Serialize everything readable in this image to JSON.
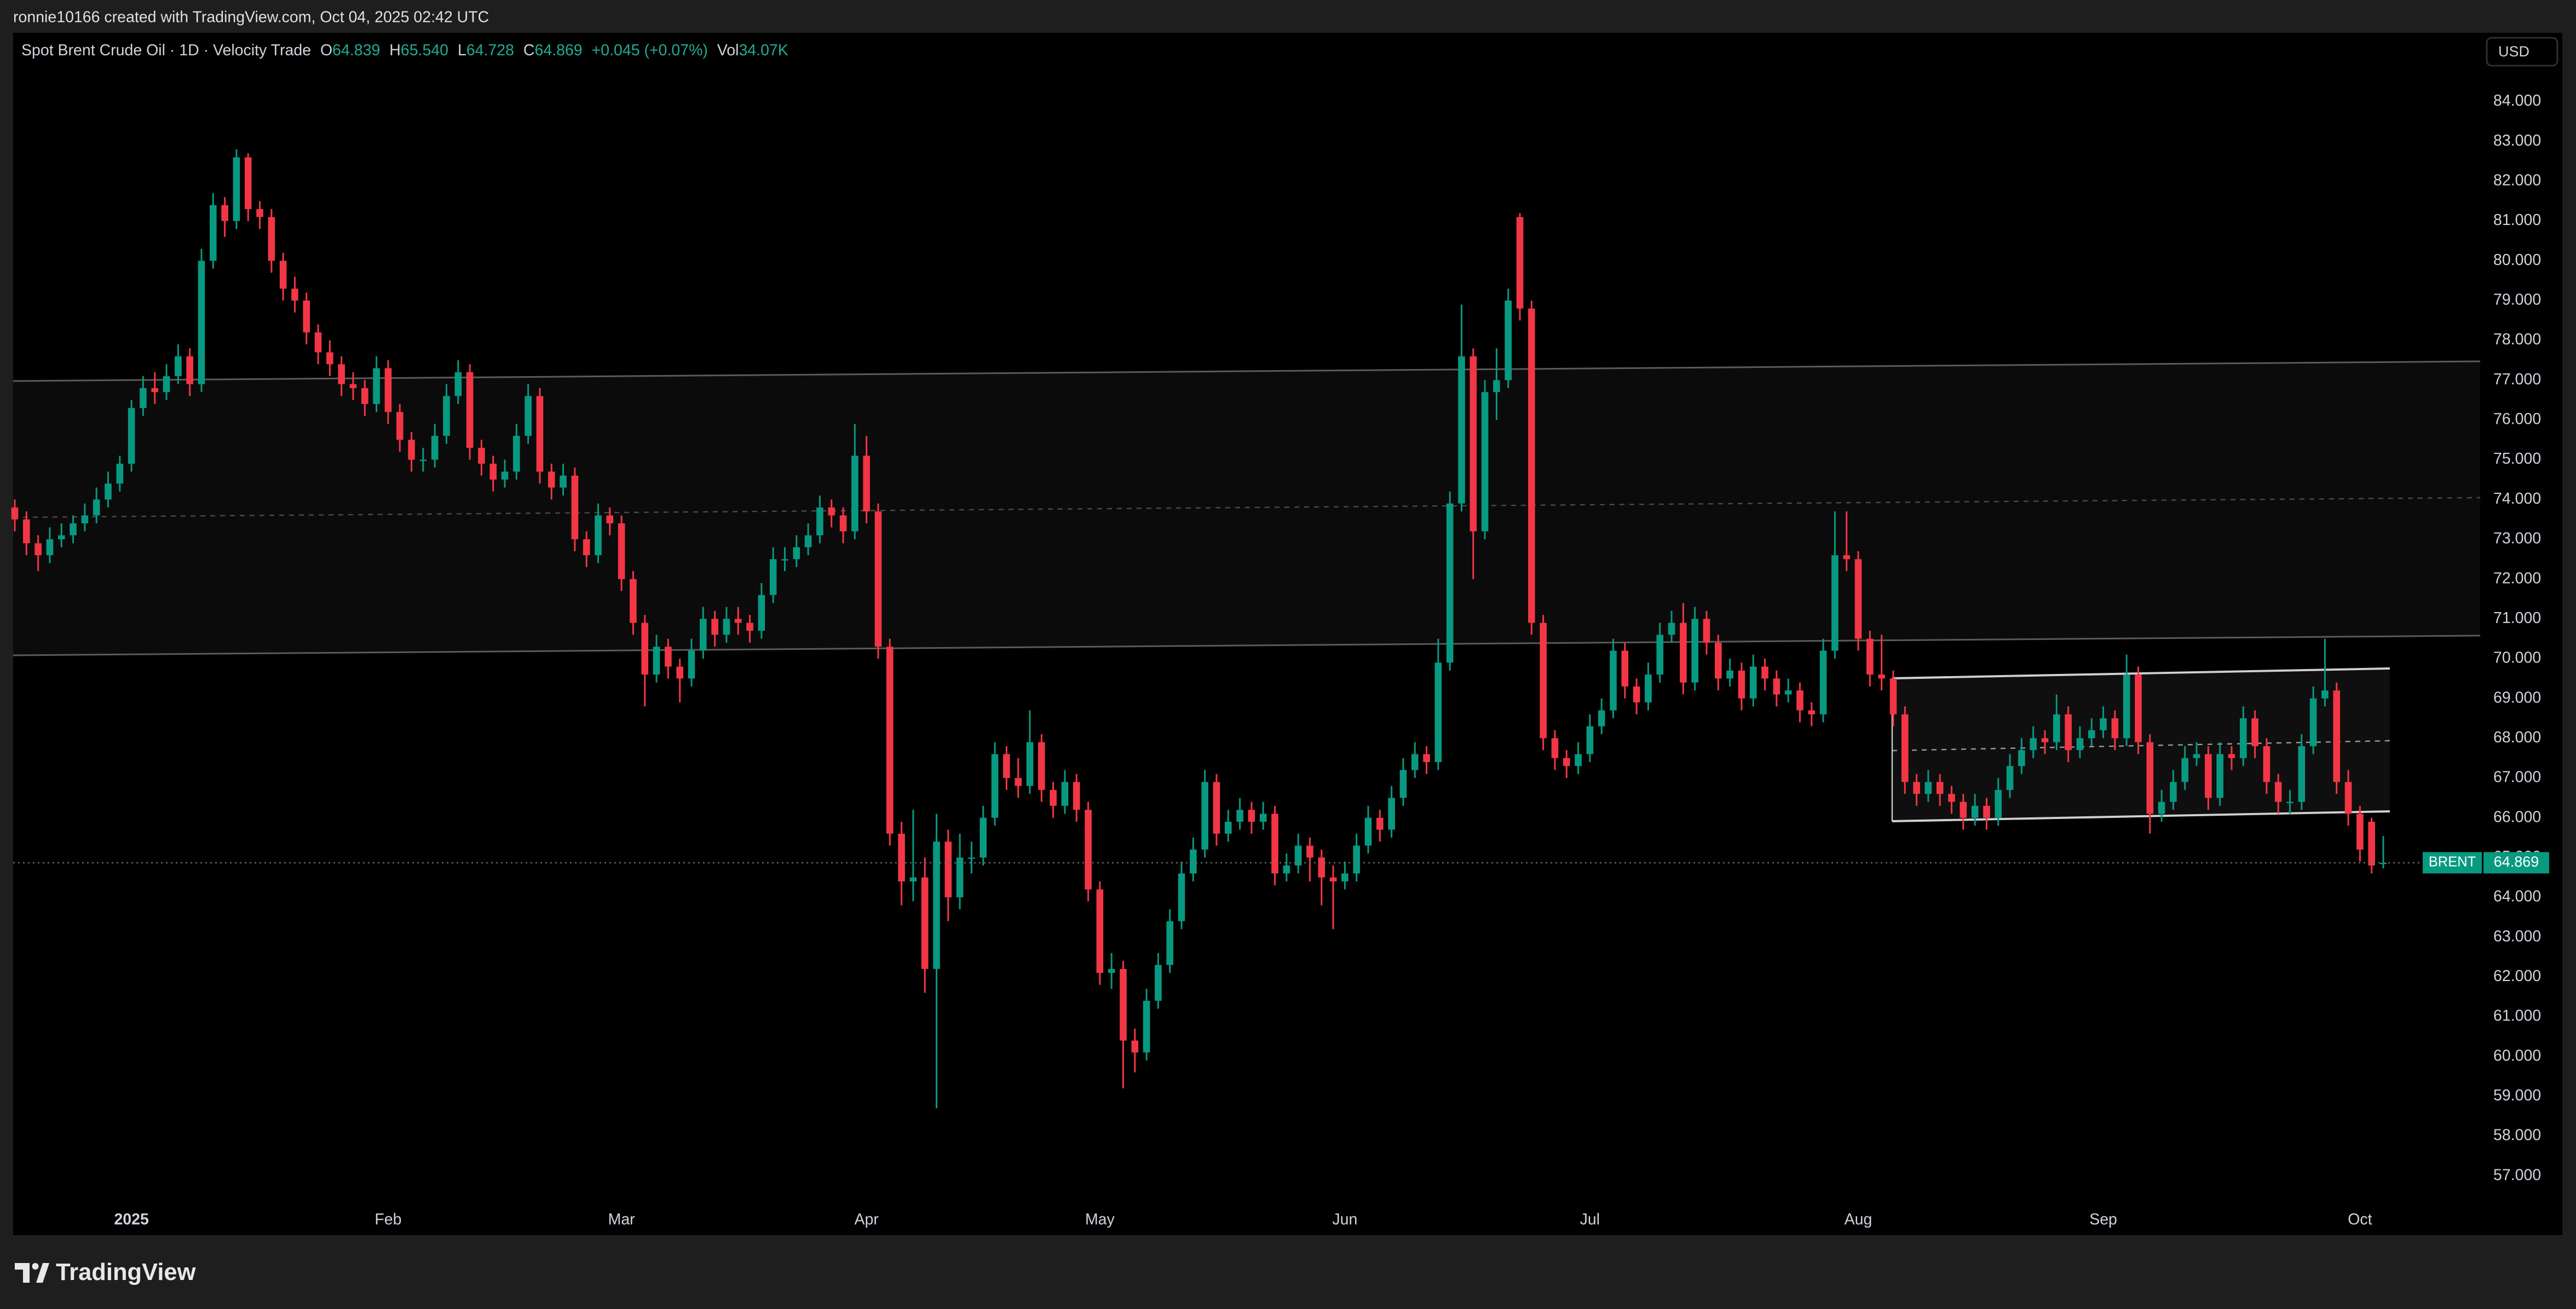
{
  "attribution": "ronnie10166 created with TradingView.com, Oct 04, 2025 02:42 UTC",
  "currency_button": "USD",
  "brand": "TradingView",
  "chart_data": {
    "type": "candlestick",
    "name": "BRENT",
    "header": {
      "symbol": "Spot Brent Crude Oil · 1D · Velocity Trade",
      "open": {
        "letter": "O",
        "value": 64.839,
        "label": "64.839"
      },
      "high": {
        "letter": "H",
        "value": 65.54,
        "label": "65.540"
      },
      "low": {
        "letter": "L",
        "value": 64.728,
        "label": "64.728"
      },
      "close": {
        "letter": "C",
        "value": 64.869,
        "label": "64.869"
      },
      "change": {
        "value": 0.045,
        "label": "+0.045 (+0.07%)"
      },
      "volume": {
        "letter": "Vol",
        "value": 34070,
        "label": "34.07K"
      }
    },
    "up_color": "#089981",
    "down_color": "#f23645",
    "grid": false,
    "ylim": [
      55.51,
      85.73
    ],
    "yticks": [
      {
        "value": 57,
        "label": "57.000"
      },
      {
        "value": 58,
        "label": "58.000"
      },
      {
        "value": 59,
        "label": "59.000"
      },
      {
        "value": 60,
        "label": "60.000"
      },
      {
        "value": 61,
        "label": "61.000"
      },
      {
        "value": 62,
        "label": "62.000"
      },
      {
        "value": 63,
        "label": "63.000"
      },
      {
        "value": 64,
        "label": "64.000"
      },
      {
        "value": 65,
        "label": "65.000"
      },
      {
        "value": 66,
        "label": "66.000"
      },
      {
        "value": 67,
        "label": "67.000"
      },
      {
        "value": 68,
        "label": "68.000"
      },
      {
        "value": 69,
        "label": "69.000"
      },
      {
        "value": 70,
        "label": "70.000"
      },
      {
        "value": 71,
        "label": "71.000"
      },
      {
        "value": 72,
        "label": "72.000"
      },
      {
        "value": 73,
        "label": "73.000"
      },
      {
        "value": 74,
        "label": "74.000"
      },
      {
        "value": 75,
        "label": "75.000"
      },
      {
        "value": 76,
        "label": "76.000"
      },
      {
        "value": 77,
        "label": "77.000"
      },
      {
        "value": 78,
        "label": "78.000"
      },
      {
        "value": 79,
        "label": "79.000"
      },
      {
        "value": 80,
        "label": "80.000"
      },
      {
        "value": 81,
        "label": "81.000"
      },
      {
        "value": 82,
        "label": "82.000"
      },
      {
        "value": 83,
        "label": "83.000"
      },
      {
        "value": 84,
        "label": "84.000"
      }
    ],
    "categories": [
      null,
      null,
      null,
      null,
      null,
      null,
      null,
      null,
      null,
      null,
      "2025",
      null,
      null,
      null,
      null,
      null,
      null,
      null,
      null,
      null,
      null,
      null,
      null,
      null,
      null,
      null,
      null,
      null,
      null,
      null,
      null,
      null,
      "Feb",
      null,
      null,
      null,
      null,
      null,
      null,
      null,
      null,
      null,
      null,
      null,
      null,
      null,
      null,
      null,
      null,
      null,
      null,
      null,
      "Mar",
      null,
      null,
      null,
      null,
      null,
      null,
      null,
      null,
      null,
      null,
      null,
      null,
      null,
      null,
      null,
      null,
      null,
      null,
      null,
      null,
      "Apr",
      null,
      null,
      null,
      null,
      null,
      null,
      null,
      null,
      null,
      null,
      null,
      null,
      null,
      null,
      null,
      null,
      null,
      null,
      null,
      "May",
      null,
      null,
      null,
      null,
      null,
      null,
      null,
      null,
      null,
      null,
      null,
      null,
      null,
      null,
      null,
      null,
      null,
      null,
      null,
      null,
      "Jun",
      null,
      null,
      null,
      null,
      null,
      null,
      null,
      null,
      null,
      null,
      null,
      null,
      null,
      null,
      null,
      null,
      null,
      null,
      null,
      null,
      "Jul",
      null,
      null,
      null,
      null,
      null,
      null,
      null,
      null,
      null,
      null,
      null,
      null,
      null,
      null,
      null,
      null,
      null,
      null,
      null,
      null,
      null,
      null,
      "Aug",
      null,
      null,
      null,
      null,
      null,
      null,
      null,
      null,
      null,
      null,
      null,
      null,
      null,
      null,
      null,
      null,
      null,
      null,
      null,
      null,
      "Sep",
      null,
      null,
      null,
      null,
      null,
      null,
      null,
      null,
      null,
      null,
      null,
      null,
      null,
      null,
      null,
      null,
      null,
      null,
      null,
      null,
      null,
      "Oct",
      null,
      null
    ],
    "open": [
      73.8,
      73.5,
      72.9,
      72.6,
      73.0,
      73.1,
      73.4,
      73.6,
      74.0,
      74.4,
      74.9,
      76.3,
      76.8,
      76.7,
      77.1,
      77.6,
      76.9,
      80.0,
      81.4,
      81.0,
      82.6,
      81.3,
      81.1,
      80.0,
      79.3,
      79.0,
      78.2,
      77.7,
      77.4,
      76.9,
      76.8,
      76.4,
      77.3,
      76.2,
      75.5,
      75.0,
      75.0,
      75.6,
      76.6,
      77.2,
      75.3,
      74.9,
      74.5,
      74.7,
      75.6,
      76.6,
      74.7,
      74.3,
      74.6,
      73.0,
      72.6,
      73.6,
      73.4,
      72.0,
      70.9,
      69.6,
      70.3,
      69.8,
      69.5,
      70.2,
      71.0,
      70.6,
      71.0,
      70.9,
      70.7,
      71.6,
      72.5,
      72.5,
      72.8,
      73.1,
      73.8,
      73.6,
      73.2,
      75.1,
      73.7,
      70.3,
      65.6,
      64.4,
      64.5,
      62.2,
      65.4,
      64.0,
      65.0,
      65.0,
      66.0,
      67.6,
      67.0,
      66.8,
      67.9,
      66.7,
      66.3,
      66.9,
      66.2,
      64.2,
      62.1,
      62.2,
      60.4,
      60.1,
      61.4,
      62.3,
      63.4,
      64.6,
      65.2,
      66.9,
      65.6,
      65.9,
      66.2,
      65.9,
      66.1,
      64.6,
      64.8,
      65.3,
      65.0,
      64.5,
      64.4,
      64.6,
      65.3,
      66.0,
      65.7,
      66.5,
      67.2,
      67.6,
      67.4,
      69.9,
      73.9,
      77.6,
      73.2,
      76.7,
      77.0,
      81.1,
      78.8,
      70.9,
      68.0,
      67.5,
      67.3,
      67.6,
      68.3,
      68.7,
      70.2,
      69.3,
      68.9,
      69.6,
      70.6,
      70.9,
      69.4,
      71.0,
      70.4,
      69.5,
      69.7,
      69.0,
      69.8,
      69.5,
      69.1,
      69.2,
      68.7,
      68.6,
      70.2,
      72.6,
      72.5,
      70.5,
      69.6,
      69.5,
      68.6,
      66.9,
      66.6,
      66.9,
      66.6,
      66.4,
      66.0,
      66.3,
      66.0,
      66.7,
      67.3,
      67.7,
      68.0,
      67.9,
      68.6,
      67.7,
      68.0,
      68.2,
      68.5,
      68.0,
      69.6,
      67.9,
      66.1,
      66.4,
      66.9,
      67.5,
      67.6,
      66.5,
      67.6,
      67.5,
      68.5,
      67.8,
      66.9,
      66.4,
      66.4,
      67.8,
      69.0,
      69.2,
      66.9,
      66.1,
      65.9,
      64.839
    ],
    "high": [
      74.0,
      73.7,
      73.1,
      73.3,
      73.4,
      73.6,
      73.9,
      74.3,
      74.7,
      75.1,
      76.5,
      77.1,
      77.2,
      77.4,
      77.9,
      77.8,
      80.3,
      81.7,
      81.6,
      82.8,
      82.7,
      81.5,
      81.3,
      80.2,
      79.6,
      79.2,
      78.4,
      78.0,
      77.6,
      77.2,
      77.0,
      77.6,
      77.5,
      76.4,
      75.7,
      75.3,
      75.9,
      76.9,
      77.5,
      77.4,
      75.5,
      75.1,
      75.0,
      75.9,
      76.9,
      76.8,
      74.9,
      74.9,
      74.8,
      73.2,
      73.9,
      73.8,
      73.6,
      72.2,
      71.1,
      70.6,
      70.5,
      70.0,
      70.5,
      71.3,
      71.2,
      71.3,
      71.3,
      71.1,
      71.9,
      72.8,
      72.8,
      73.1,
      73.4,
      74.1,
      74.0,
      73.8,
      75.9,
      75.6,
      73.9,
      70.5,
      65.9,
      66.2,
      65.0,
      66.1,
      65.7,
      65.6,
      65.4,
      66.3,
      67.9,
      67.8,
      67.5,
      68.7,
      68.1,
      66.9,
      67.2,
      67.1,
      66.4,
      64.4,
      62.6,
      62.4,
      60.7,
      61.7,
      62.6,
      63.7,
      64.9,
      65.5,
      67.2,
      67.1,
      66.2,
      66.5,
      66.4,
      66.4,
      66.3,
      65.1,
      65.6,
      65.5,
      65.2,
      64.8,
      64.9,
      65.6,
      66.3,
      66.2,
      66.8,
      67.5,
      67.9,
      67.8,
      70.5,
      74.2,
      78.9,
      77.8,
      77.0,
      77.8,
      79.3,
      81.2,
      79.0,
      71.1,
      68.2,
      67.7,
      67.9,
      68.6,
      69.0,
      70.5,
      70.4,
      69.5,
      69.9,
      70.9,
      71.2,
      71.4,
      71.3,
      71.2,
      70.6,
      70.0,
      69.9,
      70.1,
      70.0,
      69.7,
      69.5,
      69.4,
      68.9,
      70.5,
      73.7,
      73.7,
      72.7,
      70.7,
      70.6,
      69.7,
      68.8,
      67.1,
      67.2,
      67.1,
      66.8,
      66.6,
      66.6,
      66.5,
      67.0,
      67.6,
      68.0,
      68.3,
      68.2,
      69.1,
      68.8,
      68.3,
      68.5,
      68.8,
      68.7,
      70.1,
      69.8,
      68.1,
      66.7,
      67.2,
      67.8,
      67.9,
      67.8,
      67.9,
      67.8,
      68.8,
      68.7,
      68.0,
      67.1,
      66.7,
      68.1,
      69.3,
      70.5,
      69.4,
      67.2,
      66.3,
      66.0,
      65.54
    ],
    "low": [
      73.2,
      72.6,
      72.2,
      72.4,
      72.8,
      72.9,
      73.2,
      73.4,
      73.8,
      74.2,
      74.7,
      76.1,
      76.4,
      76.5,
      76.9,
      76.6,
      76.7,
      79.8,
      80.6,
      80.8,
      81.0,
      80.8,
      79.7,
      79.0,
      78.7,
      77.9,
      77.4,
      77.1,
      76.6,
      76.5,
      76.1,
      76.2,
      75.9,
      75.2,
      74.7,
      74.7,
      74.8,
      75.4,
      76.4,
      75.0,
      74.6,
      74.2,
      74.3,
      74.5,
      75.4,
      74.4,
      74.0,
      74.1,
      72.7,
      72.3,
      72.4,
      73.1,
      71.7,
      70.6,
      68.8,
      69.4,
      69.5,
      68.9,
      69.3,
      70.0,
      70.3,
      70.4,
      70.6,
      70.4,
      70.5,
      71.4,
      72.2,
      72.3,
      72.6,
      72.9,
      73.3,
      72.9,
      73.0,
      73.4,
      70.0,
      65.3,
      63.8,
      63.9,
      61.6,
      58.7,
      63.4,
      63.7,
      64.6,
      64.8,
      65.8,
      66.7,
      66.5,
      66.6,
      66.4,
      66.0,
      66.1,
      65.9,
      63.9,
      61.8,
      61.7,
      59.2,
      59.6,
      59.9,
      61.2,
      62.1,
      63.2,
      64.4,
      65.0,
      65.3,
      65.4,
      65.7,
      65.6,
      65.7,
      64.3,
      64.4,
      64.6,
      64.4,
      63.8,
      63.2,
      64.2,
      64.4,
      65.1,
      65.4,
      65.5,
      66.3,
      67.0,
      67.1,
      67.2,
      69.7,
      73.7,
      72.0,
      73.0,
      76.0,
      76.8,
      78.5,
      70.6,
      67.7,
      67.2,
      67.0,
      67.1,
      67.4,
      68.1,
      68.5,
      69.0,
      68.6,
      68.7,
      69.4,
      70.4,
      69.1,
      69.2,
      70.1,
      69.2,
      69.3,
      68.7,
      68.8,
      69.2,
      68.8,
      68.9,
      68.4,
      68.3,
      68.4,
      70.0,
      72.2,
      70.2,
      69.3,
      69.2,
      68.3,
      66.6,
      66.3,
      66.4,
      66.3,
      66.1,
      65.7,
      65.8,
      65.7,
      65.8,
      66.5,
      67.1,
      67.5,
      67.6,
      67.7,
      67.4,
      67.5,
      67.8,
      68.0,
      67.7,
      67.8,
      67.6,
      65.6,
      65.9,
      66.2,
      66.7,
      67.3,
      66.2,
      66.3,
      67.2,
      67.3,
      67.5,
      66.6,
      66.1,
      66.1,
      66.2,
      67.6,
      68.8,
      66.6,
      65.8,
      64.9,
      64.6,
      64.728
    ],
    "close": [
      73.5,
      72.9,
      72.6,
      73.0,
      73.1,
      73.4,
      73.6,
      74.0,
      74.4,
      74.9,
      76.3,
      76.8,
      76.7,
      77.1,
      77.6,
      76.9,
      80.0,
      81.4,
      81.0,
      82.6,
      81.3,
      81.1,
      80.0,
      79.3,
      79.0,
      78.2,
      77.7,
      77.4,
      76.9,
      76.8,
      76.4,
      77.3,
      76.2,
      75.5,
      75.0,
      75.0,
      75.6,
      76.6,
      77.2,
      75.3,
      74.9,
      74.5,
      74.7,
      75.6,
      76.6,
      74.7,
      74.3,
      74.6,
      73.0,
      72.6,
      73.6,
      73.4,
      72.0,
      70.9,
      69.6,
      70.3,
      69.8,
      69.5,
      70.2,
      71.0,
      70.6,
      71.0,
      70.9,
      70.7,
      71.6,
      72.5,
      72.5,
      72.8,
      73.1,
      73.8,
      73.6,
      73.2,
      75.1,
      73.7,
      70.3,
      65.6,
      64.4,
      64.5,
      62.2,
      65.4,
      64.0,
      65.0,
      65.0,
      66.0,
      67.6,
      67.0,
      66.8,
      67.9,
      66.7,
      66.3,
      66.9,
      66.2,
      64.2,
      62.1,
      62.2,
      60.4,
      60.1,
      61.4,
      62.3,
      63.4,
      64.6,
      65.2,
      66.9,
      65.6,
      65.9,
      66.2,
      65.9,
      66.1,
      64.6,
      64.8,
      65.3,
      65.0,
      64.5,
      64.4,
      64.6,
      65.3,
      66.0,
      65.7,
      66.5,
      67.2,
      67.6,
      67.4,
      69.9,
      73.9,
      77.6,
      73.2,
      76.7,
      77.0,
      79.0,
      78.8,
      70.9,
      68.0,
      67.5,
      67.3,
      67.6,
      68.3,
      68.7,
      70.2,
      69.3,
      68.9,
      69.6,
      70.6,
      70.9,
      69.4,
      71.0,
      70.4,
      69.5,
      69.7,
      69.0,
      69.8,
      69.5,
      69.1,
      69.2,
      68.7,
      68.6,
      70.2,
      72.6,
      72.5,
      70.5,
      69.6,
      69.5,
      68.6,
      66.9,
      66.6,
      66.9,
      66.6,
      66.4,
      66.0,
      66.3,
      66.0,
      66.7,
      67.3,
      67.7,
      68.0,
      67.9,
      68.6,
      67.7,
      68.0,
      68.2,
      68.5,
      68.0,
      69.6,
      67.9,
      66.1,
      66.4,
      66.9,
      67.5,
      67.6,
      66.5,
      67.6,
      67.5,
      68.5,
      67.8,
      66.9,
      66.4,
      66.4,
      67.8,
      69.0,
      69.2,
      66.9,
      66.1,
      65.2,
      64.8,
      64.869
    ]
  }
}
